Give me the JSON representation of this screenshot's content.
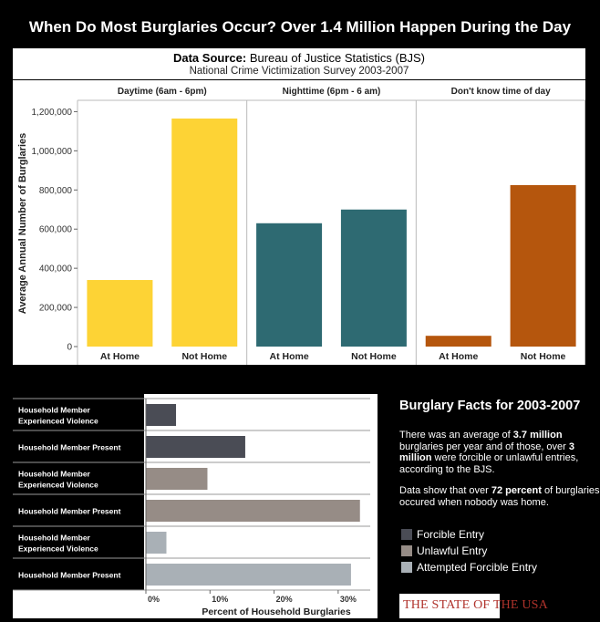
{
  "page_title": "When Do Most Burglaries Occur? Over 1.4 Million Happen During the Day",
  "source": {
    "label": "Data Source:",
    "name": "Bureau of Justice Statistics (BJS)",
    "subtitle": "National Crime Victimization Survey 2003-2007"
  },
  "facts": {
    "title": "Burglary Facts for 2003-2007",
    "p1_a": "There was an average of ",
    "p1_b": "3.7 million",
    "p1_c": " burglaries per year and of  those, over ",
    "p1_d": "3 million",
    "p1_e": " were forcible or unlawful entries, according to the BJS.",
    "p2_a": "Data show that over ",
    "p2_b": "72 percent",
    "p2_c": " of burglaries occured when nobody  was home."
  },
  "legend": [
    {
      "label": "Forcible Entry",
      "color": "#4a4c55"
    },
    {
      "label": "Unlawful Entry",
      "color": "#968c86"
    },
    {
      "label": "Attempted Forcible Entry",
      "color": "#a9b0b6"
    }
  ],
  "logo": {
    "text": "THE STATE OF THE USA"
  },
  "chart_data": [
    {
      "type": "bar",
      "ylabel": "Average Annual Number of Burglaries",
      "ylim": [
        0,
        1200000
      ],
      "yticks": [
        0,
        200000,
        400000,
        600000,
        800000,
        1000000,
        1200000
      ],
      "ytick_labels": [
        "0",
        "200,000",
        "400,000",
        "600,000",
        "800,000",
        "1,000,000",
        "1,200,000"
      ],
      "grid": false,
      "panels": [
        {
          "title": "Daytime (6am - 6pm)",
          "color": "#fdd335",
          "categories": [
            "At Home",
            "Not Home"
          ],
          "values": [
            340000,
            1165000
          ]
        },
        {
          "title": "Nighttime (6pm - 6 am)",
          "color": "#2e6a72",
          "categories": [
            "At Home",
            "Not Home"
          ],
          "values": [
            630000,
            700000
          ]
        },
        {
          "title": "Don't know time of day",
          "color": "#b5560d",
          "categories": [
            "At Home",
            "Not Home"
          ],
          "values": [
            55000,
            825000
          ]
        }
      ]
    },
    {
      "type": "bar",
      "orientation": "horizontal",
      "xlabel": "Percent of Household Burglaries",
      "xlim": [
        0,
        35
      ],
      "xticks": [
        0,
        10,
        20,
        30
      ],
      "xtick_labels": [
        "0%",
        "10%",
        "20%",
        "30%"
      ],
      "categories": [
        "Household Member Experienced Violence",
        "Household Member Present",
        "Household Member Experienced Violence",
        "Household Member Present",
        "Household Member Experienced Violence",
        "Household Member Present"
      ],
      "values": [
        4.7,
        15.5,
        9.6,
        33.4,
        3.2,
        32.0
      ],
      "series_of_row": [
        "Forcible Entry",
        "Forcible Entry",
        "Unlawful Entry",
        "Unlawful Entry",
        "Attempted Forcible Entry",
        "Attempted Forcible Entry"
      ]
    }
  ]
}
